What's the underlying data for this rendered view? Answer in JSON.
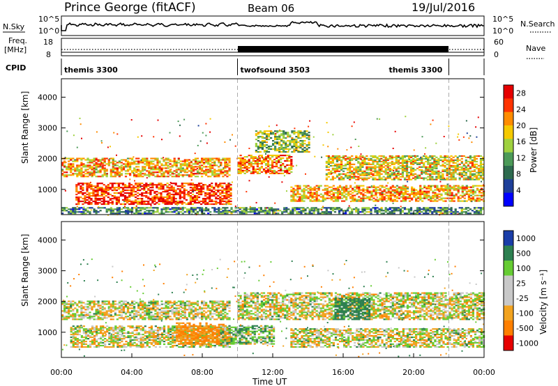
{
  "header": {
    "station": "Prince George (fitACF)",
    "beam": "Beam 06",
    "date": "19/Jul/2016"
  },
  "noise_panel": {
    "left_label": "N.Sky",
    "right_label": "N.Search",
    "left_ticks": [
      "10^5",
      "10^0"
    ],
    "right_ticks": [
      "10^5",
      "10^0"
    ]
  },
  "freq_panel": {
    "left_label_1": "Freq.",
    "left_label_2": "[MHz]",
    "right_label": "Nave",
    "left_ticks": [
      "18",
      "8"
    ],
    "right_ticks": [
      "60",
      "0"
    ]
  },
  "cpid": {
    "label": "CPID",
    "segments": [
      {
        "name": "themis 3300",
        "start_hour": 0,
        "end_hour": 10
      },
      {
        "name": "twofsound 3503",
        "start_hour": 10,
        "end_hour": 22
      },
      {
        "name": "themis 3300",
        "start_hour": 22,
        "end_hour": 24
      }
    ]
  },
  "chart_data": [
    {
      "type": "heatmap",
      "title": "",
      "xlabel": "Time UT",
      "ylabel": "Slant Range [km]",
      "xlim": [
        0,
        24
      ],
      "ylim": [
        180,
        4600
      ],
      "x_ticks": [
        "00:00",
        "04:00",
        "08:00",
        "12:00",
        "16:00",
        "20:00",
        "00:00"
      ],
      "y_ticks": [
        "1000",
        "2000",
        "3000",
        "4000"
      ],
      "colorbar": {
        "label": "Power [dB]",
        "ticks": [
          "4",
          "8",
          "12",
          "16",
          "20",
          "24",
          "28"
        ],
        "range": [
          0,
          30
        ]
      },
      "bands": [
        {
          "x0": 0,
          "x1": 9.5,
          "y0": 1400,
          "y1": 2000,
          "value": 20
        },
        {
          "x0": 0.8,
          "x1": 9.6,
          "y0": 500,
          "y1": 1200,
          "value": 26
        },
        {
          "x0": 10,
          "x1": 13,
          "y0": 1500,
          "y1": 2100,
          "value": 22
        },
        {
          "x0": 11,
          "x1": 14,
          "y0": 2200,
          "y1": 2900,
          "value": 14
        },
        {
          "x0": 13,
          "x1": 24,
          "y0": 600,
          "y1": 1100,
          "value": 20
        },
        {
          "x0": 15,
          "x1": 24,
          "y0": 1300,
          "y1": 2100,
          "value": 18
        },
        {
          "x0": 0,
          "x1": 24,
          "y0": 200,
          "y1": 400,
          "value": 10
        }
      ]
    },
    {
      "type": "heatmap",
      "title": "",
      "xlabel": "Time UT",
      "ylabel": "Slant Range [km]",
      "xlim": [
        0,
        24
      ],
      "ylim": [
        180,
        4600
      ],
      "x_ticks": [
        "00:00",
        "04:00",
        "08:00",
        "12:00",
        "16:00",
        "20:00",
        "00:00"
      ],
      "y_ticks": [
        "1000",
        "2000",
        "3000",
        "4000"
      ],
      "colorbar": {
        "label": "Velocity [m s⁻¹]",
        "ticks": [
          "1000",
          "500",
          "100",
          "25",
          "-25",
          "-100",
          "-500",
          "-1000"
        ]
      },
      "bands": [
        {
          "x0": 0,
          "x1": 9.5,
          "y0": 1400,
          "y1": 2000,
          "value": 0
        },
        {
          "x0": 0.5,
          "x1": 9.5,
          "y0": 500,
          "y1": 1200,
          "value": 0
        },
        {
          "x0": 6.5,
          "x1": 9.6,
          "y0": 600,
          "y1": 1300,
          "value": -150
        },
        {
          "x0": 9,
          "x1": 12,
          "y0": 600,
          "y1": 1200,
          "value": 60
        },
        {
          "x0": 10,
          "x1": 24,
          "y0": 1400,
          "y1": 2300,
          "value": 0
        },
        {
          "x0": 13,
          "x1": 24,
          "y0": 500,
          "y1": 1100,
          "value": 0
        },
        {
          "x0": 15.5,
          "x1": 17.5,
          "y0": 1400,
          "y1": 2100,
          "value": 300
        }
      ]
    }
  ]
}
